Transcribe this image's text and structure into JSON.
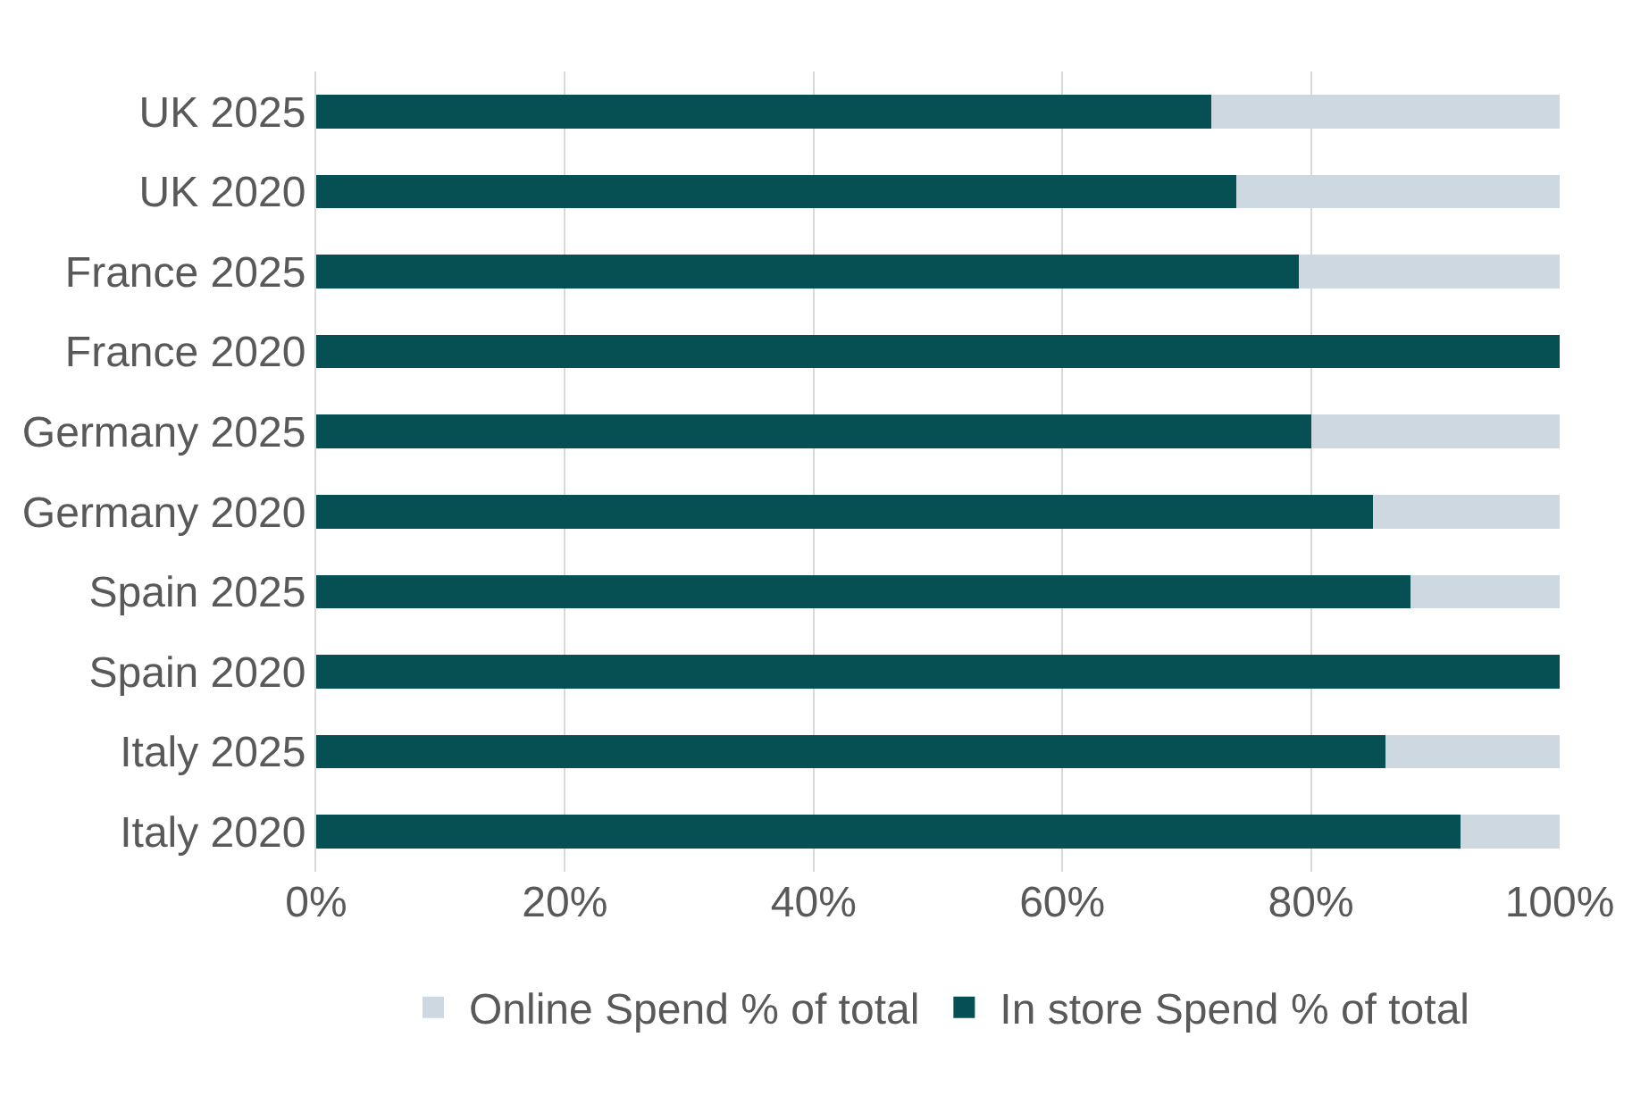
{
  "chart_data": {
    "type": "bar",
    "orientation": "horizontal",
    "stacked": true,
    "categories": [
      "UK 2025",
      "UK 2020",
      "France 2025",
      "France 2020",
      "Germany 2025",
      "Germany 2020",
      "Spain 2025",
      "Spain 2020",
      "Italy 2025",
      "Italy 2020"
    ],
    "series": [
      {
        "name": "In store Spend % of total",
        "color": "#064f52",
        "values": [
          72,
          74,
          79,
          100,
          80,
          85,
          88,
          100,
          86,
          92
        ]
      },
      {
        "name": "Online Spend % of total",
        "color": "#cdd8e1",
        "values": [
          28,
          26,
          21,
          0,
          20,
          15,
          12,
          0,
          14,
          8
        ]
      }
    ],
    "xlim": [
      0,
      100
    ],
    "xticks": [
      {
        "value": 0,
        "label": "0%"
      },
      {
        "value": 20,
        "label": "20%"
      },
      {
        "value": 40,
        "label": "40%"
      },
      {
        "value": 60,
        "label": "60%"
      },
      {
        "value": 80,
        "label": "80%"
      },
      {
        "value": 100,
        "label": "100%"
      }
    ],
    "grid": "x",
    "legend": "bottom"
  }
}
